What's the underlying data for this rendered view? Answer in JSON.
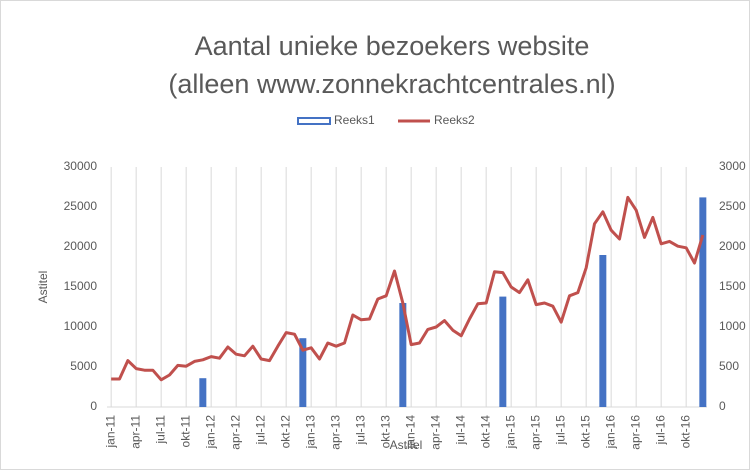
{
  "chart_data": {
    "type": "bar-line",
    "title": "Aantal unieke bezoekers website",
    "subtitle": "(alleen www.zonnekrachtcentrales.nl)",
    "x_label": "Astitel",
    "y_label": "Astitel",
    "categories": [
      "jan-11",
      null,
      null,
      "apr-11",
      null,
      null,
      "jul-11",
      null,
      null,
      "okt-11",
      null,
      null,
      "jan-12",
      null,
      null,
      "apr-12",
      null,
      null,
      "jul-12",
      null,
      null,
      "okt-12",
      null,
      null,
      "jan-13",
      null,
      null,
      "apr-13",
      null,
      null,
      "jul-13",
      null,
      null,
      "okt-13",
      null,
      null,
      "jan-14",
      null,
      null,
      "apr-14",
      null,
      null,
      "jul-14",
      null,
      null,
      "okt-14",
      null,
      null,
      "jan-15",
      null,
      null,
      "apr-15",
      null,
      null,
      "jul-15",
      null,
      null,
      "okt-15",
      null,
      null,
      "jan-16",
      null,
      null,
      "apr-16",
      null,
      null,
      "jul-16",
      null,
      null,
      "okt-16",
      null,
      null
    ],
    "series": [
      {
        "name": "Reeks1",
        "type": "bar",
        "color": "#4472c4",
        "values": [
          null,
          null,
          null,
          null,
          null,
          null,
          null,
          null,
          null,
          null,
          null,
          3600,
          null,
          null,
          null,
          null,
          null,
          null,
          null,
          null,
          null,
          null,
          null,
          8600,
          null,
          null,
          null,
          null,
          null,
          null,
          null,
          null,
          null,
          null,
          null,
          13000,
          null,
          null,
          null,
          null,
          null,
          null,
          null,
          null,
          null,
          null,
          null,
          13800,
          null,
          null,
          null,
          null,
          null,
          null,
          null,
          null,
          null,
          null,
          null,
          19000,
          null,
          null,
          null,
          null,
          null,
          null,
          null,
          null,
          null,
          null,
          null,
          26200
        ]
      },
      {
        "name": "Reeks2",
        "type": "line",
        "axis": "y2",
        "color": "#c0504d",
        "values": [
          350,
          350,
          580,
          480,
          460,
          460,
          340,
          400,
          520,
          510,
          570,
          590,
          630,
          610,
          750,
          660,
          640,
          760,
          600,
          580,
          760,
          930,
          910,
          710,
          740,
          600,
          800,
          760,
          800,
          1150,
          1090,
          1100,
          1350,
          1390,
          1700,
          1300,
          780,
          800,
          970,
          1000,
          1080,
          960,
          890,
          1100,
          1290,
          1300,
          1690,
          1680,
          1500,
          1430,
          1590,
          1280,
          1300,
          1260,
          1060,
          1390,
          1430,
          1740,
          2290,
          2440,
          2210,
          2100,
          2620,
          2460,
          2120,
          2370,
          2040,
          2070,
          2010,
          1990,
          1800,
          2150
        ]
      }
    ],
    "ylim": [
      0,
      30000
    ],
    "yticks": [
      0,
      5000,
      10000,
      15000,
      20000,
      25000,
      30000
    ],
    "y2lim": [
      0,
      3000
    ],
    "y2ticks": [
      0,
      500,
      1000,
      1500,
      2000,
      2500,
      3000
    ],
    "grid": "x",
    "legend": "top"
  }
}
